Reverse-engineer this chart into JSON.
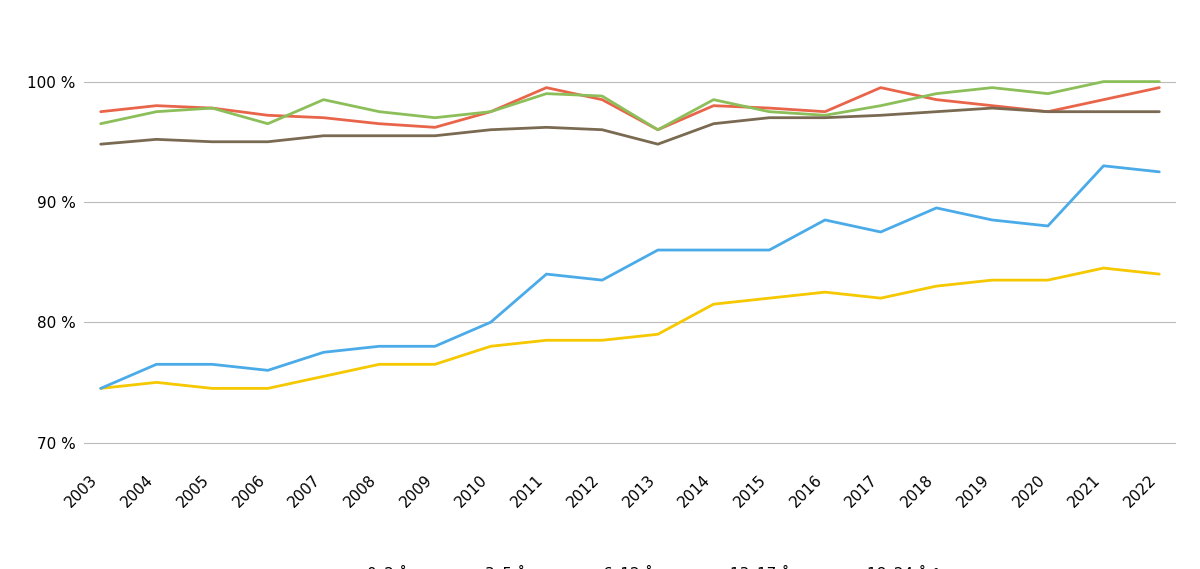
{
  "years": [
    2003,
    2004,
    2005,
    2006,
    2007,
    2008,
    2009,
    2010,
    2011,
    2012,
    2013,
    2014,
    2015,
    2016,
    2017,
    2018,
    2019,
    2020,
    2021,
    2022
  ],
  "series": {
    "0–2 år": [
      97.5,
      98.0,
      97.8,
      97.2,
      97.0,
      96.5,
      96.2,
      97.5,
      99.5,
      98.5,
      96.0,
      98.0,
      97.8,
      97.5,
      99.5,
      98.5,
      98.0,
      97.5,
      98.5,
      99.5
    ],
    "3–5 år": [
      96.5,
      97.5,
      97.8,
      96.5,
      98.5,
      97.5,
      97.0,
      97.5,
      99.0,
      98.8,
      96.0,
      98.5,
      97.5,
      97.2,
      98.0,
      99.0,
      99.5,
      99.0,
      100.0,
      100.0
    ],
    "6–12 år": [
      94.8,
      95.2,
      95.0,
      95.0,
      95.5,
      95.5,
      95.5,
      96.0,
      96.2,
      96.0,
      94.8,
      96.5,
      97.0,
      97.0,
      97.2,
      97.5,
      97.8,
      97.5,
      97.5,
      97.5
    ],
    "13–17 år": [
      74.5,
      75.0,
      74.5,
      74.5,
      75.5,
      76.5,
      76.5,
      78.0,
      78.5,
      78.5,
      79.0,
      81.5,
      82.0,
      82.5,
      82.0,
      83.0,
      83.5,
      83.5,
      84.5,
      84.0
    ],
    "18–24 år¹": [
      74.5,
      76.5,
      76.5,
      76.0,
      77.5,
      78.0,
      78.0,
      80.0,
      84.0,
      83.5,
      86.0,
      86.0,
      86.0,
      88.5,
      87.5,
      89.5,
      88.5,
      88.0,
      93.0,
      92.5
    ]
  },
  "colors": {
    "0–2 år": "#E8654A",
    "3–5 år": "#8CBF5A",
    "6–12 år": "#7A6A52",
    "13–17 år": "#F5C800",
    "18–24 år¹": "#4AABE8"
  },
  "ylim": [
    68,
    103
  ],
  "yticks": [
    70,
    80,
    90,
    100
  ],
  "ytick_labels": [
    "70 %",
    "80 %",
    "90 %",
    "100 %"
  ],
  "background_color": "#ffffff",
  "line_width": 2.0,
  "fig_width": 12.0,
  "fig_height": 5.69
}
